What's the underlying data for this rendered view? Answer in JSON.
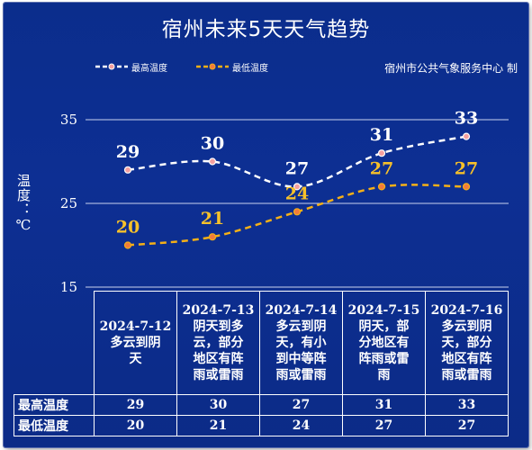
{
  "title": "宿州未来5天天气趋势",
  "source": "宿州市公共气象服务中心 制",
  "legend": {
    "high": "最高温度",
    "low": "最低温度"
  },
  "ylabel": "温度：℃",
  "colors": {
    "background": "#0c2d8e",
    "high_line": "#ffffff",
    "low_line": "#f5b017",
    "low_label": "#f7c12a"
  },
  "chart_data": {
    "type": "line",
    "categories": [
      "2024-7-12",
      "2024-7-13",
      "2024-7-14",
      "2024-7-15",
      "2024-7-16"
    ],
    "series": [
      {
        "name": "最高温度",
        "values": [
          29,
          30,
          27,
          31,
          33
        ]
      },
      {
        "name": "最低温度",
        "values": [
          20,
          21,
          24,
          27,
          27
        ]
      }
    ],
    "yticks": [
      15,
      25,
      35
    ],
    "ylim": [
      15,
      35
    ],
    "ylabel": "温度：℃",
    "grid": true
  },
  "table": {
    "days": [
      {
        "date": "2024-7-12",
        "weather_lines": [
          "多云到阴",
          "天"
        ]
      },
      {
        "date": "2024-7-13",
        "weather_lines": [
          "阴天到多",
          "云，部分",
          "地区有阵",
          "雨或雷雨"
        ]
      },
      {
        "date": "2024-7-14",
        "weather_lines": [
          "多云到阴",
          "天，有小",
          "到中等阵",
          "雨或雷雨"
        ]
      },
      {
        "date": "2024-7-15",
        "weather_lines": [
          "阴天，部",
          "分地区有",
          "阵雨或雷",
          "雨"
        ]
      },
      {
        "date": "2024-7-16",
        "weather_lines": [
          "多云到阴",
          "天，部分",
          "地区有阵",
          "雨或雷雨"
        ]
      }
    ],
    "row_high_label": "最高温度",
    "row_low_label": "最低温度",
    "high": [
      "29",
      "30",
      "27",
      "31",
      "33"
    ],
    "low": [
      "20",
      "21",
      "24",
      "27",
      "27"
    ]
  }
}
